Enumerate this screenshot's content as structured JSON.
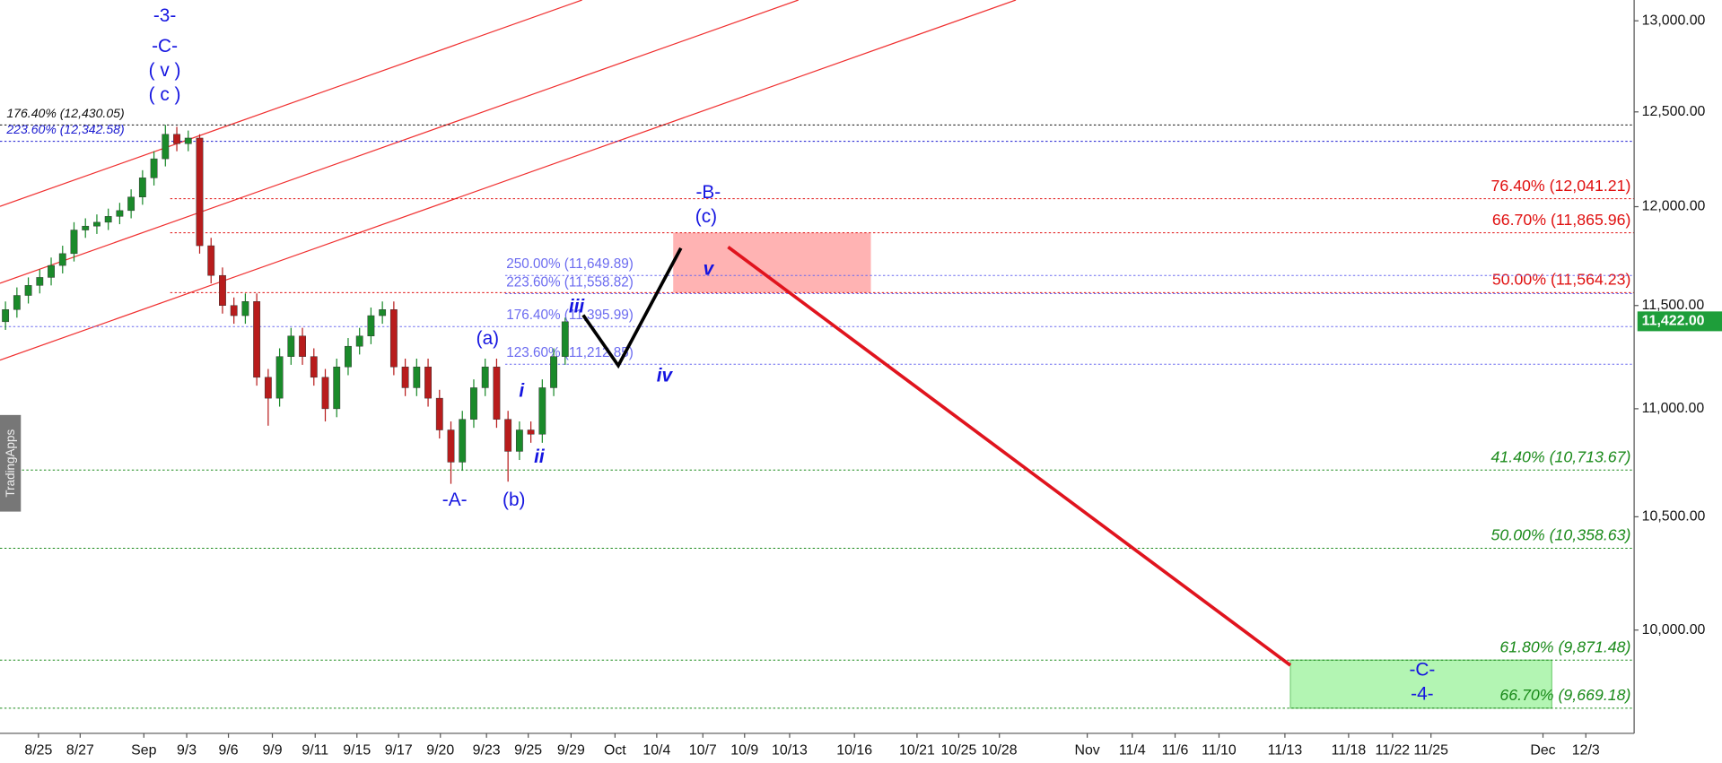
{
  "chart_data": {
    "type": "candlestick",
    "watermark": "TradingApps",
    "log_scale": true,
    "ylim": [
      9565,
      13117
    ],
    "yticks": [
      {
        "value": 10000,
        "label": "10,000.00"
      },
      {
        "value": 10500,
        "label": "10,500.00"
      },
      {
        "value": 11000,
        "label": "11,000.00"
      },
      {
        "value": 11500,
        "label": "11,500.00"
      },
      {
        "value": 12000,
        "label": "12,000.00"
      },
      {
        "value": 12500,
        "label": "12,500.00"
      },
      {
        "value": 13000,
        "label": "13,000.00"
      }
    ],
    "last_price": {
      "value": 11422,
      "label": "11,422.00",
      "color": "#1e9e3a"
    },
    "up_color": "#1a8a2a",
    "down_color": "#b81c1c",
    "xtick_labels": [
      "8/25",
      "8/27",
      "Sep",
      "9/3",
      "9/6",
      "9/9",
      "9/11",
      "9/15",
      "9/17",
      "9/20",
      "9/23",
      "9/25",
      "9/29",
      "Oct",
      "10/4",
      "10/7",
      "10/9",
      "10/13",
      "10/16",
      "10/21",
      "10/25",
      "10/28",
      "Nov",
      "11/4",
      "11/6",
      "11/10",
      "11/13",
      "11/18",
      "11/22",
      "11/25",
      "Dec",
      "12/3"
    ],
    "open": [
      11420,
      11480,
      11550,
      11600,
      11640,
      11700,
      11760,
      11880,
      11900,
      11920,
      11950,
      11980,
      12050,
      12150,
      12250,
      12380,
      12330,
      12360,
      11800,
      11650,
      11500,
      11450,
      11520,
      11150,
      11050,
      11250,
      11350,
      11250,
      11150,
      11000,
      11200,
      11300,
      11350,
      11450,
      11480,
      11200,
      11100,
      11200,
      11050,
      10900,
      10750,
      10950,
      11100,
      11200,
      10950,
      10800,
      10900,
      10880,
      11100,
      11250
    ],
    "high": [
      11520,
      11590,
      11640,
      11680,
      11740,
      11800,
      11920,
      11940,
      11960,
      11990,
      12020,
      12090,
      12190,
      12290,
      12430,
      12420,
      12400,
      12380,
      11840,
      11690,
      11540,
      11560,
      11560,
      11190,
      11290,
      11390,
      11390,
      11290,
      11190,
      11240,
      11340,
      11390,
      11490,
      11520,
      11520,
      11240,
      11240,
      11240,
      11090,
      10940,
      10990,
      11140,
      11240,
      11240,
      10990,
      10940,
      10940,
      11140,
      11290,
      11440
    ],
    "low": [
      11380,
      11440,
      11510,
      11560,
      11600,
      11660,
      11720,
      11840,
      11860,
      11880,
      11910,
      11940,
      12010,
      12110,
      12210,
      12290,
      12290,
      11760,
      11610,
      11460,
      11410,
      11410,
      11110,
      10920,
      11010,
      11210,
      11210,
      11110,
      10940,
      10960,
      11160,
      11260,
      11310,
      11410,
      11160,
      11060,
      11060,
      11010,
      10860,
      10650,
      10710,
      10910,
      11060,
      10910,
      10660,
      10760,
      10840,
      10840,
      11060,
      11210
    ],
    "close": [
      11480,
      11550,
      11600,
      11640,
      11700,
      11760,
      11880,
      11900,
      11920,
      11950,
      11980,
      12050,
      12150,
      12250,
      12380,
      12330,
      12360,
      11800,
      11650,
      11500,
      11450,
      11520,
      11150,
      11050,
      11250,
      11350,
      11250,
      11150,
      11000,
      11200,
      11300,
      11350,
      11450,
      11480,
      11200,
      11100,
      11200,
      11050,
      10900,
      10750,
      10950,
      11100,
      11200,
      10950,
      10800,
      10900,
      10880,
      11100,
      11250,
      11420
    ],
    "levels": [
      {
        "value": 12041.21,
        "label": "76.40% (12,041.21)",
        "color": "#e01010"
      },
      {
        "value": 11865.96,
        "label": "66.70% (11,865.96)",
        "color": "#e01010"
      },
      {
        "value": 11564.23,
        "label": "50.00% (11,564.23)",
        "color": "#e01010"
      },
      {
        "value": 10713.67,
        "label": "41.40% (10,713.67)",
        "color": "#1a8a1a"
      },
      {
        "value": 10358.63,
        "label": "50.00% (10,358.63)",
        "color": "#1a8a1a"
      },
      {
        "value": 9871.48,
        "label": "61.80% (9,871.48)",
        "color": "#1a8a1a"
      },
      {
        "value": 9669.18,
        "label": "66.70% (9,669.18)",
        "color": "#1a8a1a"
      },
      {
        "value": 12430.05,
        "label": "176.40% (12,430.05)",
        "color": "#111111"
      },
      {
        "value": 12342.58,
        "label": "223.60% (12,342.58)",
        "color": "#1a1ad0"
      },
      {
        "value": 11649.89,
        "label": "250.00% (11,649.89)",
        "color": "#6b6bf0"
      },
      {
        "value": 11558.82,
        "label": "223.60% (11,558.82)",
        "color": "#6b6bf0"
      },
      {
        "value": 11395.99,
        "label": "176.40% (11,395.99)",
        "color": "#6b6bf0"
      },
      {
        "value": 11212.85,
        "label": "123.60% (11,212.85)",
        "color": "#6b6bf0"
      }
    ],
    "annotations": [
      "-3-",
      "-C-",
      "( v )",
      "( c )",
      "-B-",
      "(c)",
      "(a)",
      "iii",
      "i",
      "ii",
      "iv",
      "v",
      "-A-",
      "(b)",
      "-C-",
      "-4-"
    ],
    "annotation_color": "#1414e0"
  }
}
